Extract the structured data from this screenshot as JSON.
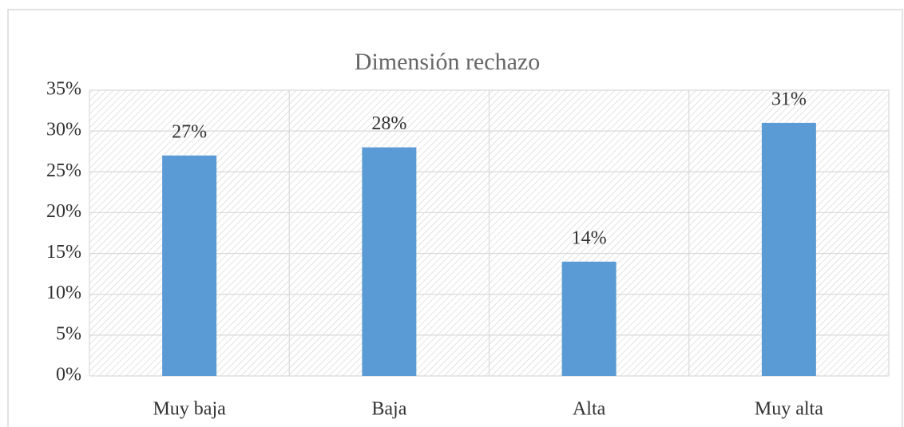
{
  "chart_data": {
    "type": "bar",
    "title": "Dimensión rechazo",
    "categories": [
      "Muy baja",
      "Baja",
      "Alta",
      "Muy alta"
    ],
    "values": [
      27,
      28,
      14,
      31
    ],
    "value_labels": [
      "27%",
      "28%",
      "14%",
      "31%"
    ],
    "color": "#5b9bd5",
    "ylim": [
      0,
      35
    ],
    "yticks": [
      {
        "value": 0,
        "label": "0%"
      },
      {
        "value": 5,
        "label": "5%"
      },
      {
        "value": 10,
        "label": "10%"
      },
      {
        "value": 15,
        "label": "15%"
      },
      {
        "value": 20,
        "label": "20%"
      },
      {
        "value": 25,
        "label": "25%"
      },
      {
        "value": 30,
        "label": "30%"
      },
      {
        "value": 35,
        "label": "35%"
      }
    ],
    "grid": true
  }
}
